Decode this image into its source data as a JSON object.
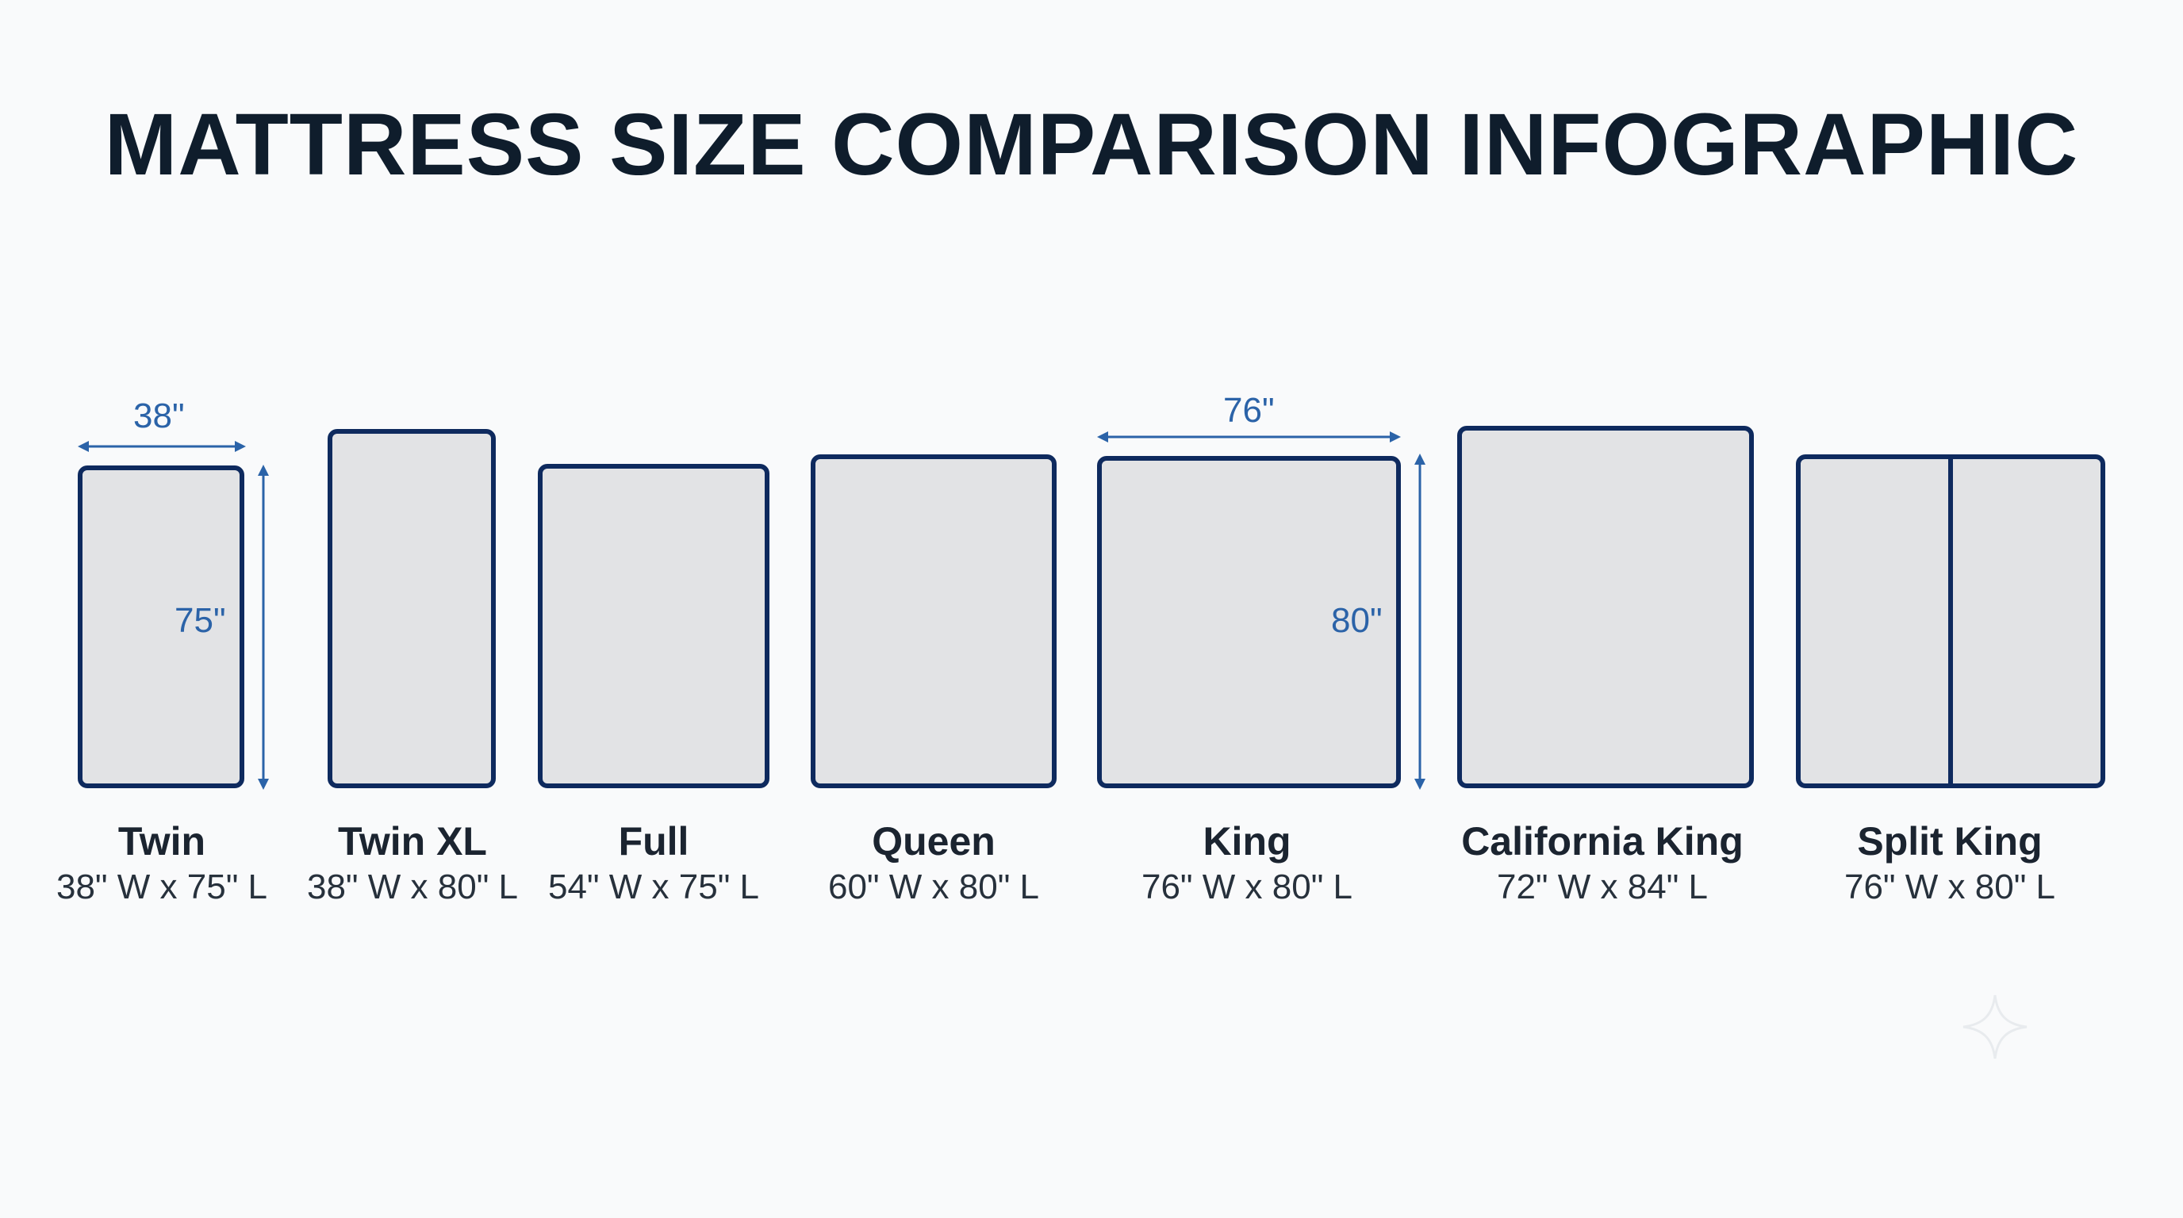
{
  "title": "MATTRESS SIZE COMPARISON INFOGRAPHIC",
  "colors": {
    "background": "#f9fafb",
    "mattress_fill": "#e2e3e5",
    "mattress_border": "#0e2a5e",
    "dimension": "#2b63a8",
    "title": "#0f1d2c"
  },
  "mattresses": [
    {
      "name": "Twin",
      "dims": "38\" W x 75\" L",
      "width_in": 38,
      "length_in": 75
    },
    {
      "name": "Twin XL",
      "dims": "38\" W x 80\" L",
      "width_in": 38,
      "length_in": 80
    },
    {
      "name": "Full",
      "dims": "54\" W x 75\" L",
      "width_in": 54,
      "length_in": 75
    },
    {
      "name": "Queen",
      "dims": "60\" W x 80\" L",
      "width_in": 60,
      "length_in": 80
    },
    {
      "name": "King",
      "dims": "76\" W x 80\" L",
      "width_in": 76,
      "length_in": 80
    },
    {
      "name": "California King",
      "dims": "72\" W x 84\" L",
      "width_in": 72,
      "length_in": 84
    },
    {
      "name": "Split King",
      "dims": "76\" W x 80\" L",
      "width_in": 76,
      "length_in": 80,
      "split": true
    }
  ],
  "dimension_labels": {
    "twin_width": "38\"",
    "twin_length": "75\"",
    "king_width": "76\"",
    "king_length": "80\""
  }
}
